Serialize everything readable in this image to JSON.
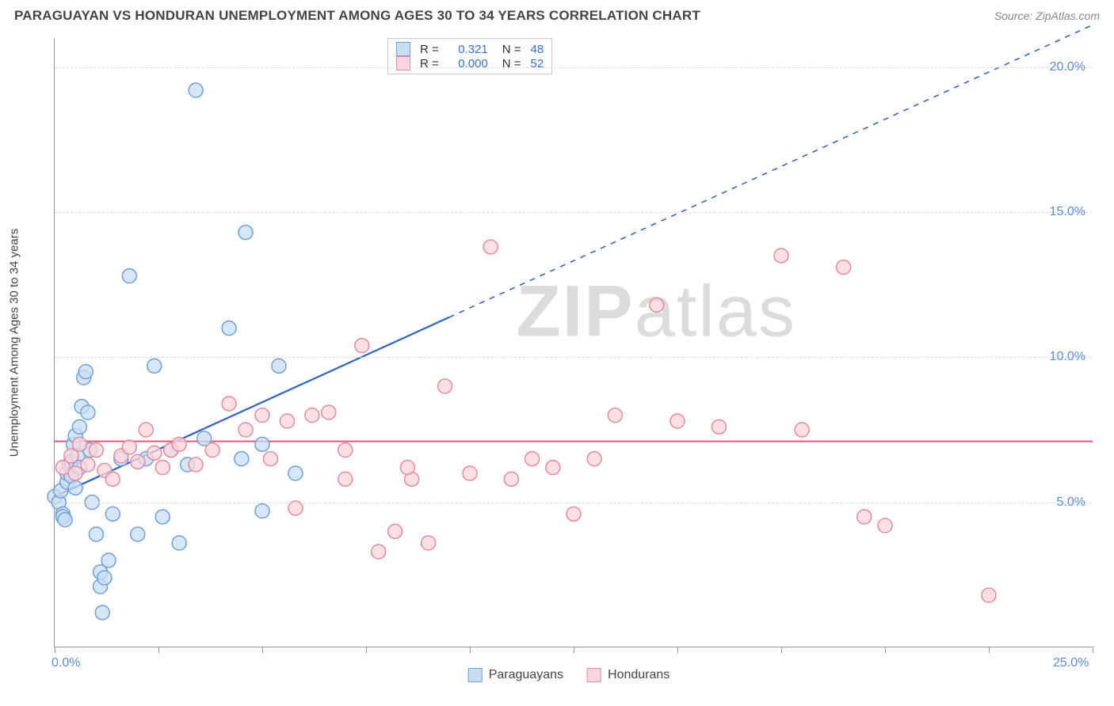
{
  "header": {
    "title": "PARAGUAYAN VS HONDURAN UNEMPLOYMENT AMONG AGES 30 TO 34 YEARS CORRELATION CHART",
    "source": "Source: ZipAtlas.com"
  },
  "chart": {
    "type": "scatter",
    "ylabel": "Unemployment Among Ages 30 to 34 years",
    "xlim": [
      0,
      25
    ],
    "ylim": [
      0,
      21
    ],
    "x_ticks": [
      0,
      2.5,
      5,
      7.5,
      10,
      12.5,
      15,
      17.5,
      20,
      22.5,
      25
    ],
    "x_tick_labels": {
      "0": "0.0%",
      "25": "25.0%"
    },
    "y_gridlines": [
      5,
      10,
      15,
      20
    ],
    "y_tick_labels": {
      "5": "5.0%",
      "10": "10.0%",
      "15": "15.0%",
      "20": "20.0%"
    },
    "background_color": "#ffffff",
    "grid_color": "#dddddd",
    "axis_color": "#999999",
    "label_color": "#5B8DD6",
    "marker_radius": 9,
    "marker_stroke_width": 1.5,
    "series": [
      {
        "name": "Paraguayans",
        "fill": "#c9ddf3",
        "stroke": "#6fa0da",
        "r_value": "0.321",
        "n_value": "48",
        "trend": {
          "color": "#2d62c5",
          "width": 2.2,
          "y_intercept": 5.2,
          "slope": 0.65,
          "solid_until_x": 9.5,
          "dash_until_x": 25
        },
        "points": [
          [
            0.0,
            5.2
          ],
          [
            0.1,
            5.0
          ],
          [
            0.15,
            5.4
          ],
          [
            0.2,
            4.6
          ],
          [
            0.2,
            4.5
          ],
          [
            0.25,
            4.4
          ],
          [
            0.3,
            5.7
          ],
          [
            0.3,
            6.0
          ],
          [
            0.35,
            6.3
          ],
          [
            0.4,
            5.9
          ],
          [
            0.4,
            6.4
          ],
          [
            0.45,
            7.0
          ],
          [
            0.5,
            7.3
          ],
          [
            0.5,
            5.5
          ],
          [
            0.55,
            6.6
          ],
          [
            0.6,
            7.6
          ],
          [
            0.6,
            6.2
          ],
          [
            0.65,
            8.3
          ],
          [
            0.7,
            9.3
          ],
          [
            0.75,
            9.5
          ],
          [
            0.8,
            8.1
          ],
          [
            0.85,
            6.8
          ],
          [
            0.9,
            5.0
          ],
          [
            1.0,
            3.9
          ],
          [
            1.1,
            2.6
          ],
          [
            1.1,
            2.1
          ],
          [
            1.15,
            1.2
          ],
          [
            1.2,
            2.4
          ],
          [
            1.3,
            3.0
          ],
          [
            1.4,
            4.6
          ],
          [
            1.6,
            6.5
          ],
          [
            1.8,
            12.8
          ],
          [
            2.0,
            3.9
          ],
          [
            2.2,
            6.5
          ],
          [
            2.4,
            9.7
          ],
          [
            2.6,
            4.5
          ],
          [
            2.8,
            6.8
          ],
          [
            3.0,
            3.6
          ],
          [
            3.2,
            6.3
          ],
          [
            3.4,
            19.2
          ],
          [
            3.6,
            7.2
          ],
          [
            4.2,
            11.0
          ],
          [
            4.6,
            14.3
          ],
          [
            5.0,
            4.7
          ],
          [
            5.4,
            9.7
          ],
          [
            5.8,
            6.0
          ],
          [
            5.0,
            7.0
          ],
          [
            4.5,
            6.5
          ]
        ]
      },
      {
        "name": "Hondurans",
        "fill": "#fbd6de",
        "stroke": "#e68aa0",
        "r_value": "0.000",
        "n_value": "52",
        "trend": {
          "color": "#e5547a",
          "width": 2,
          "y_intercept": 7.1,
          "slope": 0.0,
          "solid_until_x": 25,
          "dash_until_x": 25
        },
        "points": [
          [
            0.2,
            6.2
          ],
          [
            0.4,
            6.6
          ],
          [
            0.5,
            6.0
          ],
          [
            0.6,
            7.0
          ],
          [
            0.8,
            6.3
          ],
          [
            1.0,
            6.8
          ],
          [
            1.2,
            6.1
          ],
          [
            1.4,
            5.8
          ],
          [
            1.6,
            6.6
          ],
          [
            1.8,
            6.9
          ],
          [
            2.0,
            6.4
          ],
          [
            2.2,
            7.5
          ],
          [
            2.4,
            6.7
          ],
          [
            2.6,
            6.2
          ],
          [
            2.8,
            6.8
          ],
          [
            3.0,
            7.0
          ],
          [
            3.4,
            6.3
          ],
          [
            3.8,
            6.8
          ],
          [
            4.2,
            8.4
          ],
          [
            4.6,
            7.5
          ],
          [
            5.0,
            8.0
          ],
          [
            5.2,
            6.5
          ],
          [
            5.6,
            7.8
          ],
          [
            5.8,
            4.8
          ],
          [
            6.2,
            8.0
          ],
          [
            6.6,
            8.1
          ],
          [
            7.0,
            5.8
          ],
          [
            7.4,
            10.4
          ],
          [
            7.8,
            3.3
          ],
          [
            8.2,
            4.0
          ],
          [
            8.6,
            5.8
          ],
          [
            9.0,
            3.6
          ],
          [
            9.4,
            9.0
          ],
          [
            10.0,
            6.0
          ],
          [
            10.5,
            13.8
          ],
          [
            11.0,
            5.8
          ],
          [
            11.5,
            6.5
          ],
          [
            12.0,
            6.2
          ],
          [
            12.5,
            4.6
          ],
          [
            13.0,
            6.5
          ],
          [
            13.5,
            8.0
          ],
          [
            14.5,
            11.8
          ],
          [
            15.0,
            7.8
          ],
          [
            16.0,
            7.6
          ],
          [
            17.5,
            13.5
          ],
          [
            18.0,
            7.5
          ],
          [
            19.0,
            13.1
          ],
          [
            19.5,
            4.5
          ],
          [
            20.0,
            4.2
          ],
          [
            22.5,
            1.8
          ],
          [
            7.0,
            6.8
          ],
          [
            8.5,
            6.2
          ]
        ]
      }
    ],
    "legend_bottom": [
      "Paraguayans",
      "Hondurans"
    ],
    "watermark": {
      "bold": "ZIP",
      "light": "atlas"
    }
  }
}
